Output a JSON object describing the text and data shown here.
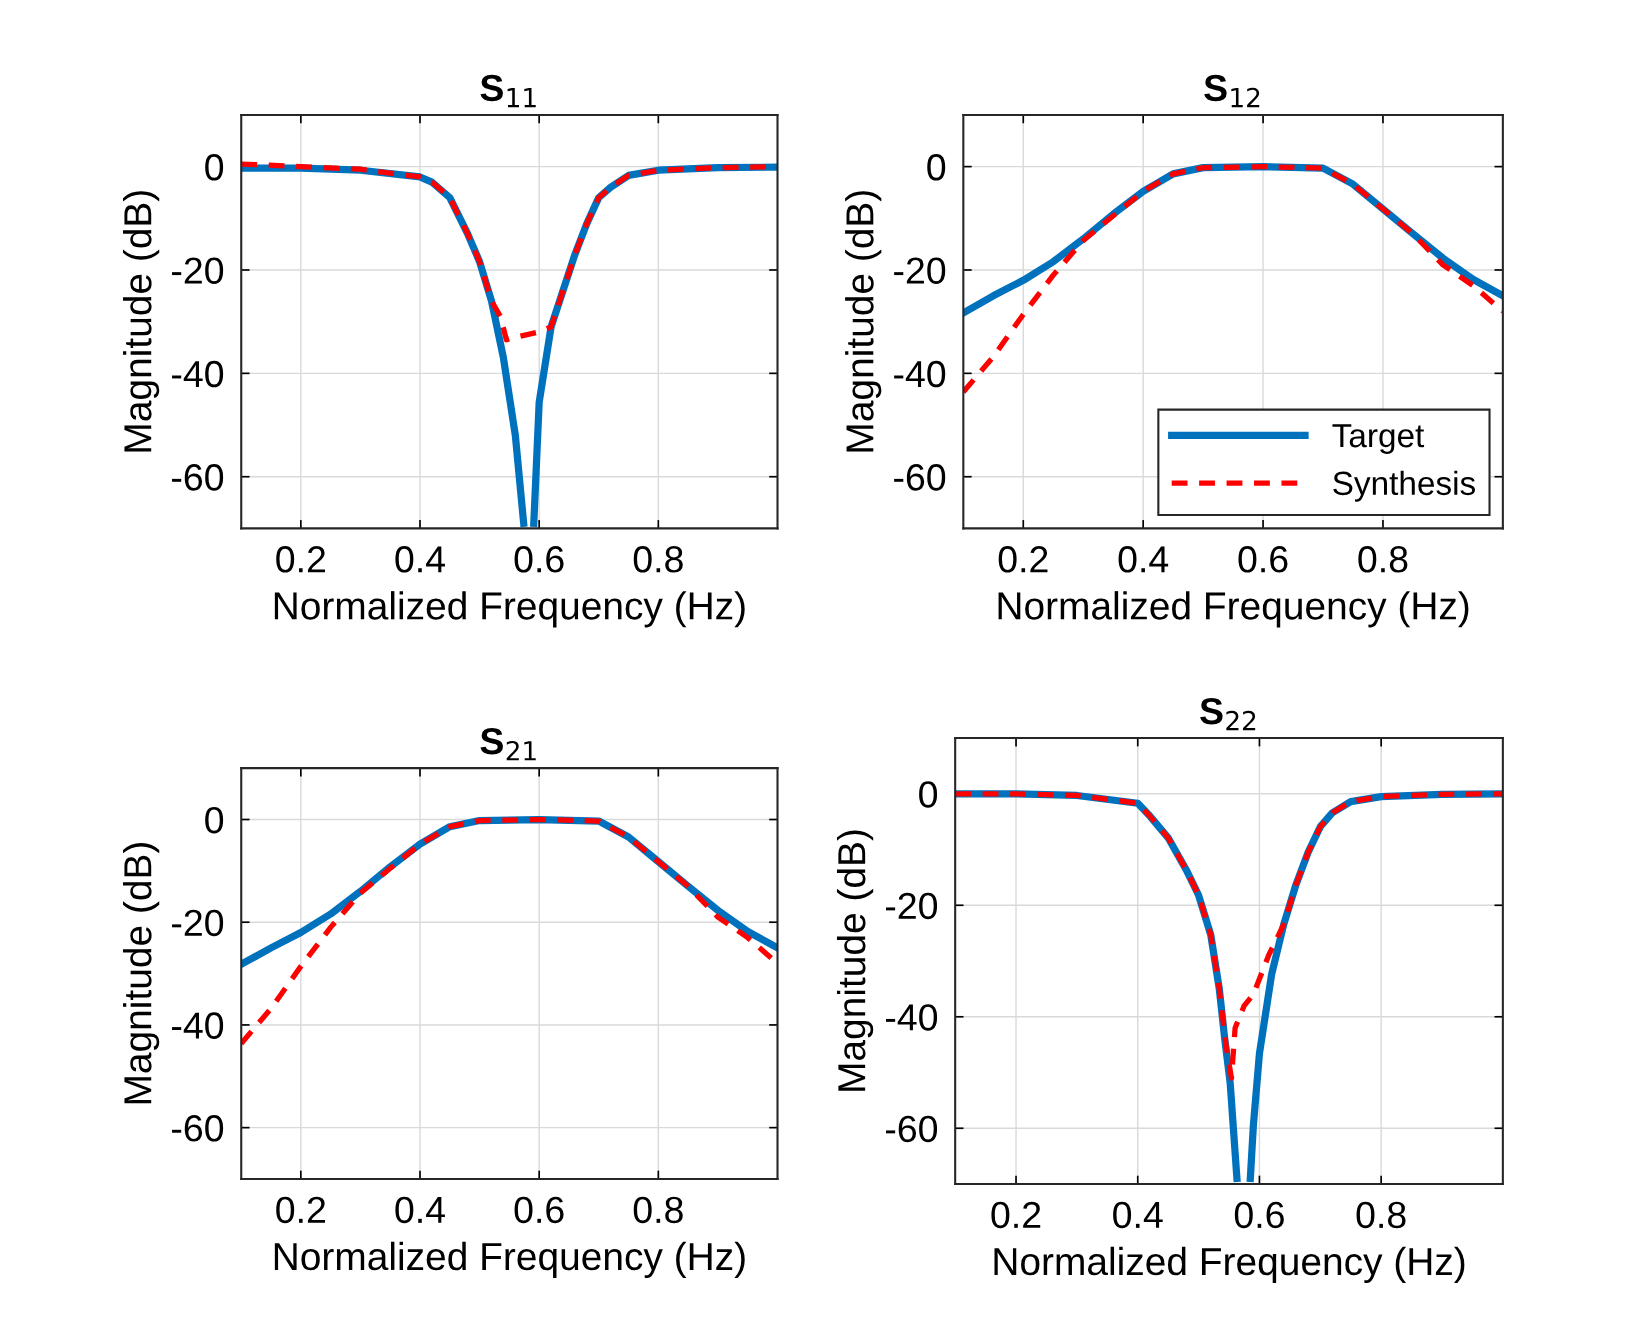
{
  "chart_data": [
    {
      "type": "line",
      "title": "S$_{11}$",
      "xlabel": "Normalized Frequency (Hz)",
      "ylabel": "Magnitude (dB)",
      "xlim": [
        0.1,
        1.0
      ],
      "ylim": [
        -70,
        10
      ],
      "xticks": [
        0.2,
        0.4,
        0.6,
        0.8
      ],
      "yticks": [
        0,
        -20,
        -40,
        -60
      ],
      "grid": true,
      "series": [
        {
          "color": "#0072bd",
          "line_style": "solid",
          "x": [
            0.1,
            0.2,
            0.3,
            0.4,
            0.42,
            0.45,
            0.48,
            0.5,
            0.52,
            0.54,
            0.56,
            0.574,
            0.582,
            0.591,
            0.6,
            0.62,
            0.64,
            0.66,
            0.68,
            0.7,
            0.72,
            0.75,
            0.8,
            0.9,
            1.0
          ],
          "values": [
            -0.3,
            -0.3,
            -0.7,
            -2,
            -3,
            -6,
            -13,
            -18.4,
            -26,
            -37,
            -52,
            -69,
            null,
            -69,
            -45.6,
            -31,
            -24,
            -17,
            -11,
            -6,
            -4,
            -1.7,
            -0.7,
            -0.2,
            -0.1
          ]
        },
        {
          "color": "#ff0000",
          "line_style": "dashed",
          "x": [
            0.1,
            0.2,
            0.3,
            0.4,
            0.42,
            0.45,
            0.48,
            0.5,
            0.52,
            0.535,
            0.545,
            0.56,
            0.58,
            0.6,
            0.62,
            0.64,
            0.66,
            0.68,
            0.7,
            0.72,
            0.75,
            0.8,
            0.9,
            1.0
          ],
          "values": [
            0.5,
            0,
            -0.5,
            -2,
            -3,
            -6,
            -13,
            -18.4,
            -26,
            -29,
            -33.5,
            -33,
            -32.5,
            -32,
            -31,
            -24,
            -17,
            -11,
            -6,
            -4,
            -1.7,
            -0.7,
            -0.2,
            0
          ]
        }
      ]
    },
    {
      "type": "line",
      "title": "S$_{12}$",
      "xlabel": "Normalized Frequency (Hz)",
      "ylabel": "Magnitude (dB)",
      "xlim": [
        0.1,
        1.0
      ],
      "ylim": [
        -70,
        10
      ],
      "xticks": [
        0.2,
        0.4,
        0.6,
        0.8
      ],
      "yticks": [
        0,
        -20,
        -40,
        -60
      ],
      "grid": true,
      "legend": "lower right",
      "series": [
        {
          "name": "Target",
          "color": "#0072bd",
          "line_style": "solid",
          "x": [
            0.1,
            0.15,
            0.2,
            0.25,
            0.3,
            0.35,
            0.4,
            0.45,
            0.5,
            0.6,
            0.7,
            0.75,
            0.8,
            0.85,
            0.9,
            0.95,
            1.0
          ],
          "values": [
            -28.3,
            -25,
            -22,
            -18.4,
            -14,
            -9.2,
            -4.8,
            -1.4,
            -0.2,
            0,
            -0.3,
            -3.4,
            -8.2,
            -13,
            -17.7,
            -21.8,
            -25
          ]
        },
        {
          "name": "Synthesis",
          "color": "#ff0000",
          "line_style": "dashed",
          "x": [
            0.1,
            0.15,
            0.2,
            0.25,
            0.3,
            0.35,
            0.4,
            0.45,
            0.5,
            0.6,
            0.7,
            0.75,
            0.8,
            0.85,
            0.9,
            0.95,
            1.0
          ],
          "values": [
            -43.6,
            -36.8,
            -28.6,
            -21,
            -14.3,
            -9.5,
            -4.8,
            -1.4,
            -0.2,
            0,
            -0.3,
            -3.4,
            -8.2,
            -13,
            -19,
            -23,
            -28
          ]
        }
      ]
    },
    {
      "type": "line",
      "title": "S$_{21}$",
      "xlabel": "Normalized Frequency (Hz)",
      "ylabel": "Magnitude (dB)",
      "xlim": [
        0.1,
        1.0
      ],
      "ylim": [
        -70,
        10
      ],
      "xticks": [
        0.2,
        0.4,
        0.6,
        0.8
      ],
      "yticks": [
        0,
        -20,
        -40,
        -60
      ],
      "grid": true,
      "series": [
        {
          "color": "#0072bd",
          "line_style": "solid",
          "x": [
            0.1,
            0.15,
            0.2,
            0.25,
            0.3,
            0.35,
            0.4,
            0.45,
            0.5,
            0.6,
            0.7,
            0.75,
            0.8,
            0.85,
            0.9,
            0.95,
            1.0
          ],
          "values": [
            -28.2,
            -25,
            -22,
            -18.4,
            -14,
            -9.2,
            -4.8,
            -1.4,
            -0.2,
            0,
            -0.3,
            -3.4,
            -8.2,
            -13,
            -17.7,
            -21.8,
            -25
          ]
        },
        {
          "color": "#ff0000",
          "line_style": "dashed",
          "x": [
            0.1,
            0.15,
            0.2,
            0.25,
            0.3,
            0.35,
            0.4,
            0.45,
            0.5,
            0.6,
            0.7,
            0.75,
            0.8,
            0.85,
            0.9,
            0.95,
            1.0
          ],
          "values": [
            -43.6,
            -36.8,
            -28.6,
            -21,
            -14.3,
            -9.5,
            -4.8,
            -1.4,
            -0.2,
            0,
            -0.3,
            -3.4,
            -8.2,
            -13,
            -19,
            -23,
            -28
          ]
        }
      ]
    },
    {
      "type": "line",
      "title": "S$_{22}$",
      "xlabel": "Normalized Frequency (Hz)",
      "ylabel": "Magnitude (dB)",
      "xlim": [
        0.1,
        1.0
      ],
      "ylim": [
        -70,
        10
      ],
      "xticks": [
        0.2,
        0.4,
        0.6,
        0.8
      ],
      "yticks": [
        0,
        -20,
        -40,
        -60
      ],
      "grid": true,
      "series": [
        {
          "color": "#0072bd",
          "line_style": "solid",
          "x": [
            0.1,
            0.2,
            0.3,
            0.4,
            0.42,
            0.45,
            0.48,
            0.5,
            0.52,
            0.534,
            0.543,
            0.552,
            0.563,
            0.574,
            0.585,
            0.59,
            0.6,
            0.62,
            0.64,
            0.66,
            0.68,
            0.7,
            0.72,
            0.75,
            0.8,
            0.9,
            1.0
          ],
          "values": [
            0,
            0,
            -0.3,
            -1.7,
            -4,
            -7.9,
            -13.7,
            -18.2,
            -25.3,
            -35,
            -44,
            -52,
            -69,
            null,
            -69,
            -59.5,
            -46.6,
            -32.4,
            -23.4,
            -16.3,
            -10.5,
            -5.9,
            -3.4,
            -1.4,
            -0.5,
            -0.1,
            0
          ]
        },
        {
          "color": "#ff0000",
          "line_style": "dashed",
          "x": [
            0.1,
            0.2,
            0.3,
            0.4,
            0.42,
            0.45,
            0.48,
            0.5,
            0.52,
            0.534,
            0.545,
            0.554,
            0.56,
            0.575,
            0.59,
            0.615,
            0.64,
            0.66,
            0.68,
            0.7,
            0.72,
            0.75,
            0.8,
            0.9,
            1.0
          ],
          "values": [
            0,
            0,
            -0.3,
            -1.7,
            -4,
            -7.9,
            -13.7,
            -18.2,
            -25.3,
            -35,
            -45,
            -51,
            -42,
            -38,
            -36,
            -29,
            -23.4,
            -16.3,
            -10.5,
            -5.9,
            -3.4,
            -1.4,
            -0.5,
            -0.1,
            0
          ]
        }
      ]
    }
  ]
}
